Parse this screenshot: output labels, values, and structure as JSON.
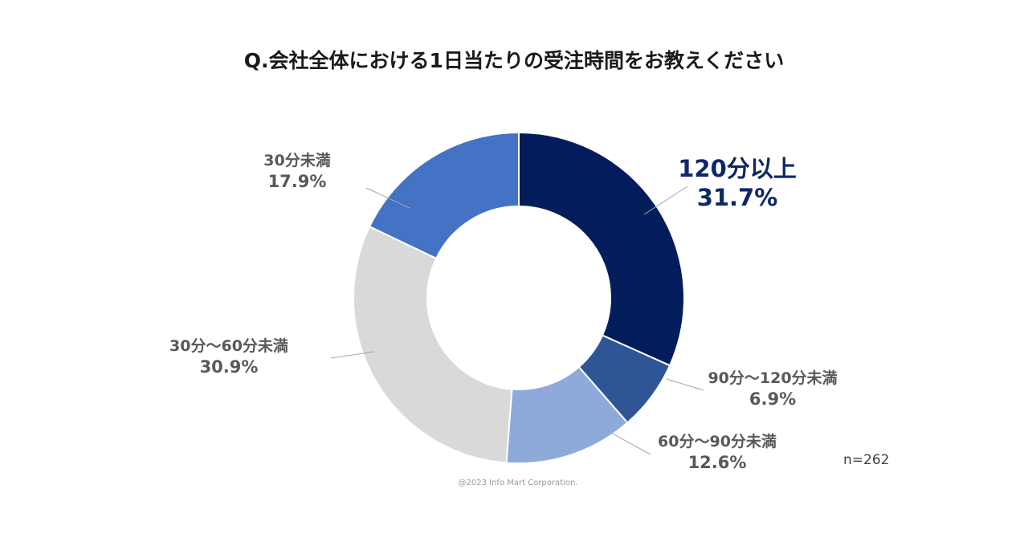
{
  "title": "Q.会社全体における1日当たりの受注時間をお教えください",
  "sample_size": "n=262",
  "copyright": "@2023 Info Mart Corporation.",
  "chart_data": {
    "type": "pie",
    "subtype": "donut",
    "title": "Q.会社全体における1日当たりの受注時間をお教えください",
    "slices": [
      {
        "label": "120分以上",
        "value": 31.7,
        "display": "31.7%",
        "color": "#031d5c"
      },
      {
        "label": "90分〜120分未満",
        "value": 6.9,
        "display": "6.9%",
        "color": "#2f5597"
      },
      {
        "label": "60分〜90分未満",
        "value": 12.6,
        "display": "12.6%",
        "color": "#8eaadb"
      },
      {
        "label": "30分〜60分未満",
        "value": 30.9,
        "display": "30.9%",
        "color": "#d9d9d9"
      },
      {
        "label": "30分未満",
        "value": 17.9,
        "display": "17.9%",
        "color": "#4472c4"
      }
    ],
    "start": "12 o'clock",
    "direction": "clockwise"
  }
}
